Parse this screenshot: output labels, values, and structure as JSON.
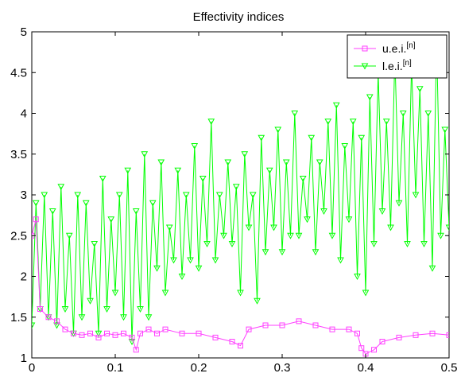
{
  "chart_data": {
    "type": "line",
    "title": "Effectivity indices",
    "xlabel": "",
    "ylabel": "",
    "xlim": [
      0,
      0.5
    ],
    "ylim": [
      1,
      5
    ],
    "x_ticks": [
      "0",
      "0.1",
      "0.2",
      "0.3",
      "0.4",
      "0.5"
    ],
    "y_ticks": [
      "1",
      "1.5",
      "2",
      "2.5",
      "3",
      "3.5",
      "4",
      "4.5",
      "5"
    ],
    "grid": false,
    "legend_position": "top-right",
    "series": [
      {
        "name": "u.e.i.",
        "name_superscript": "[n]",
        "color": "#ff40ff",
        "marker": "square",
        "x": [
          0.0,
          0.005,
          0.01,
          0.02,
          0.03,
          0.04,
          0.05,
          0.06,
          0.07,
          0.08,
          0.09,
          0.1,
          0.11,
          0.12,
          0.125,
          0.13,
          0.14,
          0.15,
          0.16,
          0.18,
          0.2,
          0.22,
          0.24,
          0.25,
          0.26,
          0.28,
          0.3,
          0.32,
          0.34,
          0.36,
          0.38,
          0.39,
          0.395,
          0.4,
          0.41,
          0.42,
          0.44,
          0.46,
          0.48,
          0.5
        ],
        "y": [
          2.5,
          2.7,
          1.6,
          1.5,
          1.45,
          1.35,
          1.3,
          1.28,
          1.3,
          1.25,
          1.3,
          1.28,
          1.3,
          1.25,
          1.1,
          1.3,
          1.35,
          1.3,
          1.35,
          1.3,
          1.3,
          1.25,
          1.2,
          1.15,
          1.35,
          1.4,
          1.4,
          1.45,
          1.4,
          1.35,
          1.35,
          1.3,
          1.12,
          1.05,
          1.1,
          1.2,
          1.25,
          1.28,
          1.3,
          1.28
        ]
      },
      {
        "name": "l.e.i.",
        "name_superscript": "[n]",
        "color": "#00ff00",
        "marker": "triangle-down",
        "x": [
          0.0,
          0.005,
          0.01,
          0.015,
          0.02,
          0.025,
          0.03,
          0.035,
          0.04,
          0.045,
          0.05,
          0.055,
          0.06,
          0.065,
          0.07,
          0.075,
          0.08,
          0.085,
          0.09,
          0.095,
          0.1,
          0.105,
          0.11,
          0.115,
          0.12,
          0.125,
          0.13,
          0.135,
          0.14,
          0.145,
          0.15,
          0.155,
          0.16,
          0.165,
          0.17,
          0.175,
          0.18,
          0.185,
          0.19,
          0.195,
          0.2,
          0.205,
          0.21,
          0.215,
          0.22,
          0.225,
          0.23,
          0.235,
          0.24,
          0.245,
          0.25,
          0.255,
          0.26,
          0.265,
          0.27,
          0.275,
          0.28,
          0.285,
          0.29,
          0.295,
          0.3,
          0.305,
          0.31,
          0.315,
          0.32,
          0.325,
          0.33,
          0.335,
          0.34,
          0.345,
          0.35,
          0.355,
          0.36,
          0.365,
          0.37,
          0.375,
          0.38,
          0.385,
          0.39,
          0.395,
          0.4,
          0.405,
          0.41,
          0.415,
          0.42,
          0.425,
          0.43,
          0.435,
          0.44,
          0.445,
          0.45,
          0.455,
          0.46,
          0.465,
          0.47,
          0.475,
          0.48,
          0.485,
          0.49,
          0.495,
          0.5
        ],
        "y": [
          1.4,
          2.9,
          1.6,
          3.0,
          1.5,
          2.8,
          1.4,
          3.1,
          1.6,
          2.5,
          1.3,
          3.0,
          1.5,
          2.9,
          1.7,
          2.4,
          1.3,
          3.2,
          1.6,
          2.7,
          1.8,
          3.0,
          1.5,
          3.3,
          1.2,
          2.8,
          1.6,
          3.5,
          1.5,
          2.9,
          2.1,
          3.4,
          1.8,
          2.6,
          2.2,
          3.3,
          2.0,
          3.0,
          2.2,
          3.6,
          2.1,
          3.2,
          2.4,
          3.9,
          2.2,
          3.0,
          2.5,
          3.4,
          2.4,
          3.1,
          1.8,
          3.5,
          2.6,
          3.0,
          1.7,
          3.7,
          2.3,
          3.3,
          2.6,
          3.8,
          2.3,
          3.4,
          2.5,
          4.0,
          2.5,
          3.2,
          2.7,
          3.7,
          2.3,
          3.4,
          2.8,
          3.9,
          2.5,
          4.1,
          2.2,
          3.6,
          2.7,
          3.9,
          2.0,
          3.7,
          1.8,
          4.2,
          2.4,
          4.5,
          2.8,
          3.9,
          2.6,
          4.7,
          2.9,
          4.0,
          2.4,
          4.6,
          3.0,
          4.3,
          2.4,
          4.0,
          2.1,
          4.9,
          2.5,
          3.8,
          2.6
        ]
      }
    ]
  }
}
